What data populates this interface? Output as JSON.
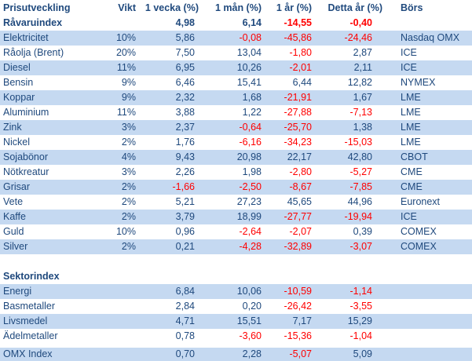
{
  "table": {
    "colors": {
      "header_text": "#1F497D",
      "positive_text": "#1F497D",
      "negative_text": "#FF0000",
      "stripe_background": "#C5D9F1",
      "background": "#FFFFFF"
    },
    "columns": [
      {
        "key": "name",
        "label": "Prisutveckling"
      },
      {
        "key": "vikt",
        "label": "Vikt"
      },
      {
        "key": "w1",
        "label": "1 vecka (%)"
      },
      {
        "key": "m1",
        "label": "1 mån (%)"
      },
      {
        "key": "y1",
        "label": "1 år (%)"
      },
      {
        "key": "ytd",
        "label": "Detta år (%)"
      },
      {
        "key": "bors",
        "label": "Börs"
      }
    ],
    "rows": [
      {
        "name": "Råvaruindex",
        "vikt": "",
        "w1": "4,98",
        "m1": "6,14",
        "y1": "-14,55",
        "ytd": "-0,40",
        "bors": "",
        "bold": true
      },
      {
        "name": "Elektricitet",
        "vikt": "10%",
        "w1": "5,86",
        "m1": "-0,08",
        "y1": "-45,86",
        "ytd": "-24,46",
        "bors": "Nasdaq OMX",
        "stripe": true
      },
      {
        "name": "Råolja (Brent)",
        "vikt": "20%",
        "w1": "7,50",
        "m1": "13,04",
        "y1": "-1,80",
        "ytd": "2,87",
        "bors": "ICE"
      },
      {
        "name": "Diesel",
        "vikt": "11%",
        "w1": "6,95",
        "m1": "10,26",
        "y1": "-2,01",
        "ytd": "2,11",
        "bors": "ICE",
        "stripe": true
      },
      {
        "name": "Bensin",
        "vikt": "9%",
        "w1": "6,46",
        "m1": "15,41",
        "y1": "6,44",
        "ytd": "12,82",
        "bors": "NYMEX"
      },
      {
        "name": "Koppar",
        "vikt": "9%",
        "w1": "2,32",
        "m1": "1,68",
        "y1": "-21,91",
        "ytd": "1,67",
        "bors": "LME",
        "stripe": true
      },
      {
        "name": "Aluminium",
        "vikt": "11%",
        "w1": "3,88",
        "m1": "1,22",
        "y1": "-27,88",
        "ytd": "-7,13",
        "bors": "LME"
      },
      {
        "name": "Zink",
        "vikt": "3%",
        "w1": "2,37",
        "m1": "-0,64",
        "y1": "-25,70",
        "ytd": "1,38",
        "bors": "LME",
        "stripe": true
      },
      {
        "name": "Nickel",
        "vikt": "2%",
        "w1": "1,76",
        "m1": "-6,16",
        "y1": "-34,23",
        "ytd": "-15,03",
        "bors": "LME"
      },
      {
        "name": "Sojabönor",
        "vikt": "4%",
        "w1": "9,43",
        "m1": "20,98",
        "y1": "22,17",
        "ytd": "42,80",
        "bors": "CBOT",
        "stripe": true
      },
      {
        "name": "Nötkreatur",
        "vikt": "3%",
        "w1": "2,26",
        "m1": "1,98",
        "y1": "-2,80",
        "ytd": "-5,27",
        "bors": "CME"
      },
      {
        "name": "Grisar",
        "vikt": "2%",
        "w1": "-1,66",
        "m1": "-2,50",
        "y1": "-8,67",
        "ytd": "-7,85",
        "bors": "CME",
        "stripe": true
      },
      {
        "name": "Vete",
        "vikt": "2%",
        "w1": "5,21",
        "m1": "27,23",
        "y1": "45,65",
        "ytd": "44,96",
        "bors": "Euronext"
      },
      {
        "name": "Kaffe",
        "vikt": "2%",
        "w1": "3,79",
        "m1": "18,99",
        "y1": "-27,77",
        "ytd": "-19,94",
        "bors": "ICE",
        "stripe": true
      },
      {
        "name": "Guld",
        "vikt": "10%",
        "w1": "0,96",
        "m1": "-2,64",
        "y1": "-2,07",
        "ytd": "0,39",
        "bors": "COMEX"
      },
      {
        "name": "Silver",
        "vikt": "2%",
        "w1": "0,21",
        "m1": "-4,28",
        "y1": "-32,89",
        "ytd": "-3,07",
        "bors": "COMEX",
        "stripe": true
      },
      {
        "type": "spacer"
      },
      {
        "name": "Sektorindex",
        "vikt": "",
        "w1": "",
        "m1": "",
        "y1": "",
        "ytd": "",
        "bors": "",
        "bold": true
      },
      {
        "name": "Energi",
        "vikt": "",
        "w1": "6,84",
        "m1": "10,06",
        "y1": "-10,59",
        "ytd": "-1,14",
        "bors": "",
        "stripe": true
      },
      {
        "name": "Basmetaller",
        "vikt": "",
        "w1": "2,84",
        "m1": "0,20",
        "y1": "-26,42",
        "ytd": "-3,55",
        "bors": ""
      },
      {
        "name": "Livsmedel",
        "vikt": "",
        "w1": "4,71",
        "m1": "15,51",
        "y1": "7,17",
        "ytd": "15,29",
        "bors": "",
        "stripe": true
      },
      {
        "name": "Ädelmetaller",
        "vikt": "",
        "w1": "0,78",
        "m1": "-3,60",
        "y1": "-15,36",
        "ytd": "-1,04",
        "bors": ""
      },
      {
        "type": "gap"
      },
      {
        "name": "OMX Index",
        "vikt": "",
        "w1": "0,70",
        "m1": "2,28",
        "y1": "-5,07",
        "ytd": "5,09",
        "bors": "",
        "stripe": true,
        "omx": true
      }
    ]
  }
}
